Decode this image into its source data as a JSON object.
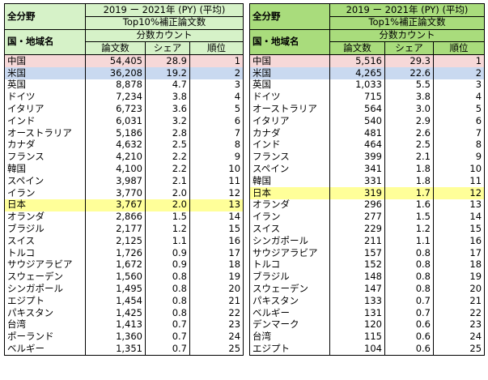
{
  "left": {
    "header_color": "#d6f2c8",
    "header": {
      "field": "全分野",
      "period": "2019 ー 2021年 (PY) (平均)",
      "metric": "Top10%補正論文数",
      "country_col": "国・地域名",
      "count_type": "分数カウント",
      "columns": [
        "論文数",
        "シェア",
        "順位"
      ]
    },
    "highlights": [
      {
        "row": 0,
        "color": "#f6d8d8"
      },
      {
        "row": 1,
        "color": "#c9d9f0"
      },
      {
        "row": 12,
        "color": "#ffff99"
      }
    ],
    "rows": [
      [
        "中国",
        "54,405",
        "28.9",
        "1"
      ],
      [
        "米国",
        "36,208",
        "19.2",
        "2"
      ],
      [
        "英国",
        "8,878",
        "4.7",
        "3"
      ],
      [
        "ドイツ",
        "7,234",
        "3.8",
        "4"
      ],
      [
        "イタリア",
        "6,723",
        "3.6",
        "5"
      ],
      [
        "インド",
        "6,031",
        "3.2",
        "6"
      ],
      [
        "オーストラリア",
        "5,186",
        "2.8",
        "7"
      ],
      [
        "カナダ",
        "4,632",
        "2.5",
        "8"
      ],
      [
        "フランス",
        "4,210",
        "2.2",
        "9"
      ],
      [
        "韓国",
        "4,100",
        "2.2",
        "10"
      ],
      [
        "スペイン",
        "3,987",
        "2.1",
        "11"
      ],
      [
        "イラン",
        "3,770",
        "2.0",
        "12"
      ],
      [
        "日本",
        "3,767",
        "2.0",
        "13"
      ],
      [
        "オランダ",
        "2,866",
        "1.5",
        "14"
      ],
      [
        "ブラジル",
        "2,177",
        "1.2",
        "15"
      ],
      [
        "スイス",
        "2,125",
        "1.1",
        "16"
      ],
      [
        "トルコ",
        "1,726",
        "0.9",
        "17"
      ],
      [
        "サウジアラビア",
        "1,672",
        "0.9",
        "18"
      ],
      [
        "スウェーデン",
        "1,560",
        "0.8",
        "19"
      ],
      [
        "シンガポール",
        "1,495",
        "0.8",
        "20"
      ],
      [
        "エジプト",
        "1,454",
        "0.8",
        "21"
      ],
      [
        "パキスタン",
        "1,425",
        "0.8",
        "22"
      ],
      [
        "台湾",
        "1,413",
        "0.7",
        "23"
      ],
      [
        "ポーランド",
        "1,360",
        "0.7",
        "24"
      ],
      [
        "ベルギー",
        "1,351",
        "0.7",
        "25"
      ]
    ]
  },
  "right": {
    "header_color": "#a9dc7c",
    "header": {
      "field": "全分野",
      "period": "2019 ー 2021年 (PY) (平均)",
      "metric": "Top1%補正論文数",
      "country_col": "国・地域名",
      "count_type": "分数カウント",
      "columns": [
        "論文数",
        "シェア",
        "順位"
      ]
    },
    "highlights": [
      {
        "row": 0,
        "color": "#f6d8d8"
      },
      {
        "row": 1,
        "color": "#c9d9f0"
      },
      {
        "row": 11,
        "color": "#ffff99"
      }
    ],
    "rows": [
      [
        "中国",
        "5,516",
        "29.3",
        "1"
      ],
      [
        "米国",
        "4,265",
        "22.6",
        "2"
      ],
      [
        "英国",
        "1,033",
        "5.5",
        "3"
      ],
      [
        "ドイツ",
        "715",
        "3.8",
        "4"
      ],
      [
        "オーストラリア",
        "564",
        "3.0",
        "5"
      ],
      [
        "イタリア",
        "540",
        "2.9",
        "6"
      ],
      [
        "カナダ",
        "481",
        "2.6",
        "7"
      ],
      [
        "インド",
        "464",
        "2.5",
        "8"
      ],
      [
        "フランス",
        "399",
        "2.1",
        "9"
      ],
      [
        "スペイン",
        "341",
        "1.8",
        "10"
      ],
      [
        "韓国",
        "331",
        "1.8",
        "11"
      ],
      [
        "日本",
        "319",
        "1.7",
        "12"
      ],
      [
        "オランダ",
        "296",
        "1.6",
        "13"
      ],
      [
        "イラン",
        "277",
        "1.5",
        "14"
      ],
      [
        "スイス",
        "229",
        "1.2",
        "15"
      ],
      [
        "シンガポール",
        "211",
        "1.1",
        "16"
      ],
      [
        "サウジアラビア",
        "157",
        "0.8",
        "17"
      ],
      [
        "トルコ",
        "152",
        "0.8",
        "18"
      ],
      [
        "ブラジル",
        "148",
        "0.8",
        "19"
      ],
      [
        "スウェーデン",
        "147",
        "0.8",
        "20"
      ],
      [
        "パキスタン",
        "133",
        "0.7",
        "21"
      ],
      [
        "ベルギー",
        "131",
        "0.7",
        "22"
      ],
      [
        "デンマーク",
        "120",
        "0.6",
        "23"
      ],
      [
        "台湾",
        "115",
        "0.6",
        "24"
      ],
      [
        "エジプト",
        "104",
        "0.6",
        "25"
      ]
    ]
  }
}
